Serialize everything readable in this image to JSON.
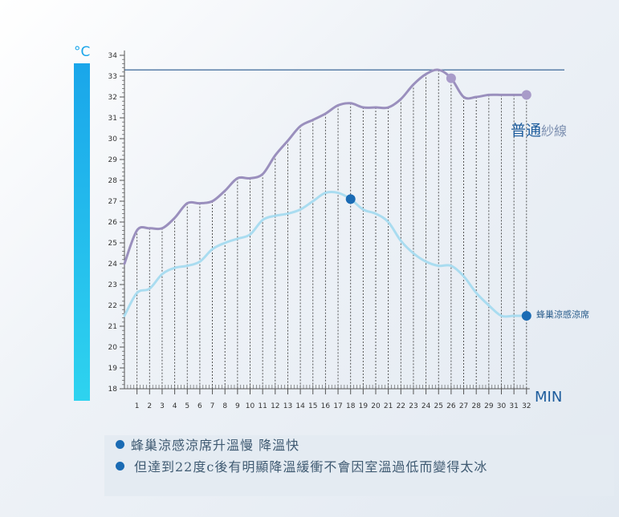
{
  "chart_data": {
    "type": "line",
    "unit_label": "°C",
    "x_unit": "MIN",
    "x_ticks": [
      1,
      2,
      3,
      4,
      5,
      6,
      7,
      8,
      9,
      10,
      11,
      12,
      13,
      14,
      15,
      16,
      17,
      18,
      19,
      20,
      21,
      22,
      23,
      24,
      25,
      26,
      27,
      28,
      29,
      30,
      31,
      32
    ],
    "y_ticks": [
      18,
      19,
      20,
      21,
      22,
      23,
      24,
      25,
      26,
      27,
      28,
      29,
      30,
      31,
      32,
      33,
      34
    ],
    "ylim": [
      18,
      34
    ],
    "xlim": [
      0,
      32
    ],
    "reference_line": 33.3,
    "series": [
      {
        "name": "普通紗線",
        "color": "#9a8fbd",
        "marker_color": "#a89bc9",
        "x": [
          0,
          1,
          2,
          3,
          4,
          5,
          6,
          7,
          8,
          9,
          10,
          11,
          12,
          13,
          14,
          15,
          16,
          17,
          18,
          19,
          20,
          21,
          22,
          23,
          24,
          25,
          26,
          27,
          28,
          29,
          30,
          31,
          32
        ],
        "values": [
          24.0,
          25.6,
          25.7,
          25.7,
          26.2,
          26.9,
          26.9,
          27.0,
          27.5,
          28.1,
          28.1,
          28.3,
          29.2,
          29.9,
          30.6,
          30.9,
          31.2,
          31.6,
          31.7,
          31.5,
          31.5,
          31.5,
          31.9,
          32.6,
          33.1,
          33.3,
          32.9,
          32.0,
          32.0,
          32.1,
          32.1,
          32.1,
          32.1
        ],
        "markers_at_x": [
          26,
          32
        ]
      },
      {
        "name": "蜂巢涼感涼席",
        "color": "#a9dcf0",
        "marker_color": "#1a6bb4",
        "x": [
          0,
          1,
          2,
          3,
          4,
          5,
          6,
          7,
          8,
          9,
          10,
          11,
          12,
          13,
          14,
          15,
          16,
          17,
          18,
          19,
          20,
          21,
          22,
          23,
          24,
          25,
          26,
          27,
          28,
          29,
          30,
          31,
          32
        ],
        "values": [
          21.5,
          22.6,
          22.8,
          23.5,
          23.8,
          23.9,
          24.1,
          24.7,
          25.0,
          25.2,
          25.4,
          26.1,
          26.3,
          26.4,
          26.6,
          27.0,
          27.4,
          27.4,
          27.1,
          26.6,
          26.4,
          26.0,
          25.1,
          24.5,
          24.1,
          23.9,
          23.9,
          23.4,
          22.6,
          22.0,
          21.5,
          21.5,
          21.5
        ],
        "markers_at_x": [
          18,
          32
        ]
      }
    ]
  },
  "labels": {
    "unit": "°C",
    "x_unit": "MIN",
    "series_normal_a": "普通",
    "series_normal_b": "紗線",
    "series_cool": "蜂巢涼感涼席"
  },
  "notes": {
    "line1": "蜂巢涼感涼席升溫慢  降溫快",
    "line2": "但達到22度c後有明顯降溫緩衝不會因室溫過低而變得太冰"
  },
  "colors": {
    "axis": "#555555",
    "reference_line": "#5a7fa8",
    "legend_text": "#1d5c9c",
    "legend_text_light": "#7c8fb0",
    "thermometer_top": "#1aa6ea",
    "thermometer_bottom": "#2ed3ef"
  }
}
